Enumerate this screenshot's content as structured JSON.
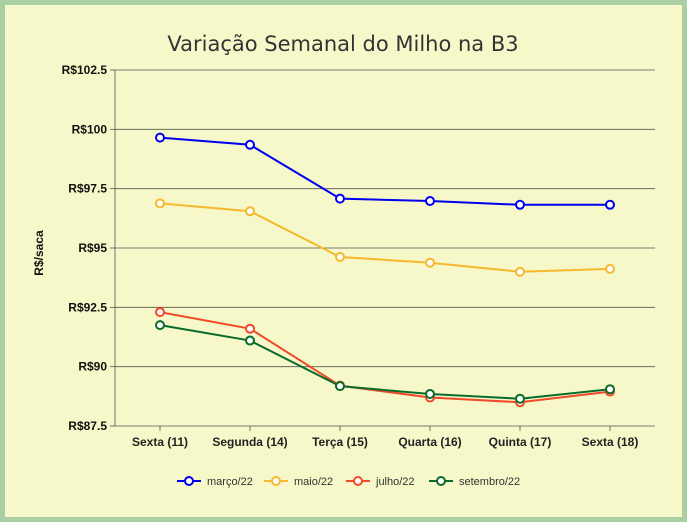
{
  "chart_data": {
    "type": "line",
    "title": "Variação Semanal do Milho na B3",
    "xlabel": "",
    "ylabel": "R$/saca",
    "categories": [
      "Sexta (11)",
      "Segunda (14)",
      "Terça (15)",
      "Quarta (16)",
      "Quinta (17)",
      "Sexta (18)"
    ],
    "ylim": [
      87.5,
      102.5
    ],
    "yticks": [
      87.5,
      90,
      92.5,
      95,
      97.5,
      100,
      102.5
    ],
    "ytick_labels": [
      "R$87.5",
      "R$90",
      "R$92.5",
      "R$95",
      "R$97.5",
      "R$100",
      "R$102.5"
    ],
    "grid": true,
    "legend_position": "bottom",
    "series": [
      {
        "name": "março/22",
        "color": "#0000ee",
        "values": [
          99.65,
          99.35,
          97.08,
          96.98,
          96.82,
          96.82
        ]
      },
      {
        "name": "maio/22",
        "color": "#f5b82e",
        "values": [
          96.88,
          96.55,
          94.62,
          94.38,
          94.0,
          94.12
        ]
      },
      {
        "name": "julho/22",
        "color": "#f04a2a",
        "values": [
          92.3,
          91.6,
          89.2,
          88.7,
          88.5,
          88.95
        ]
      },
      {
        "name": "setembro/22",
        "color": "#0a6b2a",
        "values": [
          91.75,
          91.1,
          89.18,
          88.85,
          88.65,
          89.05
        ]
      }
    ]
  }
}
